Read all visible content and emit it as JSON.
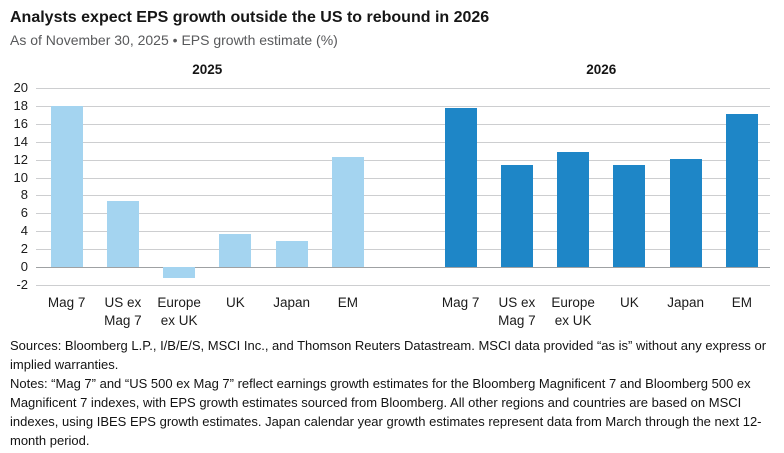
{
  "header": {
    "title": "Analysts expect EPS growth outside the US to rebound in 2026",
    "subtitle": "As of November 30, 2025 • EPS growth estimate (%)"
  },
  "chart_data": {
    "type": "bar",
    "panel_titles": [
      "2025",
      "2026"
    ],
    "categories": [
      "Mag 7",
      "US ex\nMag 7",
      "Europe\nex UK",
      "UK",
      "Japan",
      "EM"
    ],
    "series": [
      {
        "name": "2025",
        "color": "#A4D4F0",
        "values": [
          18.0,
          7.4,
          -1.2,
          3.7,
          2.9,
          12.3
        ]
      },
      {
        "name": "2026",
        "color": "#1E86C7",
        "values": [
          17.8,
          11.4,
          12.8,
          11.4,
          12.1,
          17.1
        ]
      }
    ],
    "ylabel": "EPS growth estimate (%)",
    "ylim": [
      -2,
      20
    ],
    "ytick_step": 2,
    "yticks": [
      20,
      18,
      16,
      14,
      12,
      10,
      8,
      6,
      4,
      2,
      0,
      -2
    ],
    "grid": "horizontal",
    "legend_position": "none"
  },
  "footnotes": {
    "sources": "Sources: Bloomberg L.P., I/B/E/S, MSCI Inc., and Thomson Reuters Datastream. MSCI data provided “as is” without any express or implied warranties.",
    "notes": "Notes: “Mag 7” and “US 500 ex Mag 7” reflect earnings growth estimates for the Bloomberg Magnificent 7 and Bloomberg 500 ex Magnificent 7 indexes, with EPS growth estimates sourced from Bloomberg. All other regions and countries are based on MSCI indexes, using IBES EPS growth estimates. Japan calendar year growth estimates represent data from March through the next 12-month period."
  },
  "colors": {
    "bar_2025": "#A4D4F0",
    "bar_2026": "#1E86C7",
    "gridline": "#CDCED0",
    "zero_line": "#9FA1A3",
    "subtitle_text": "#58595B"
  }
}
